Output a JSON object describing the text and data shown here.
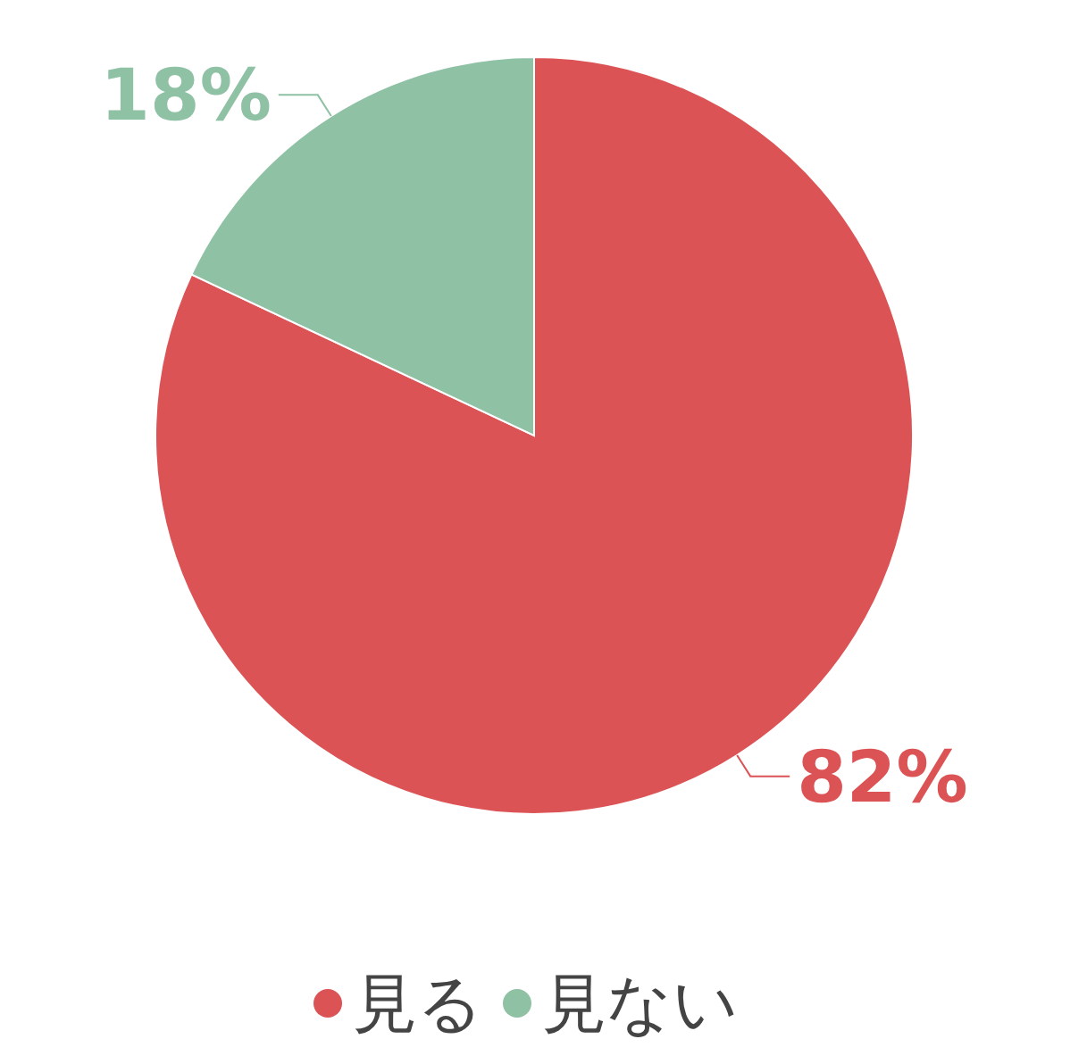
{
  "chart_data": {
    "type": "pie",
    "categories": [
      "見る",
      "見ない"
    ],
    "values": [
      82,
      18
    ],
    "colors": [
      "#dc5355",
      "#8fc1a5"
    ],
    "value_labels": [
      "82%",
      "18%"
    ],
    "legend": "bottom"
  }
}
